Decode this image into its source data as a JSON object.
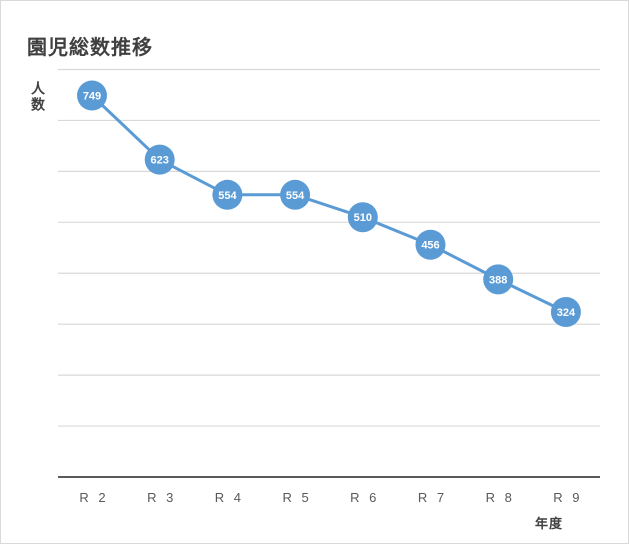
{
  "chart_data": {
    "type": "line",
    "title": "園児総数推移",
    "ylabel": "人数",
    "xlabel": "年度",
    "categories": [
      "R 2",
      "R 3",
      "R 4",
      "R 5",
      "R 6",
      "R 7",
      "R 8",
      "R 9"
    ],
    "series": [
      {
        "values": [
          749,
          623,
          554,
          554,
          510,
          456,
          388,
          324
        ]
      }
    ],
    "ylim": [
      0,
      800
    ],
    "grid": true,
    "legend": "none",
    "line_color": "#5b9bd5",
    "marker_color": "#5b9bd5",
    "label_color": "#ffffff",
    "grid_color": "#d9d9d9",
    "axis_color": "#595959"
  }
}
